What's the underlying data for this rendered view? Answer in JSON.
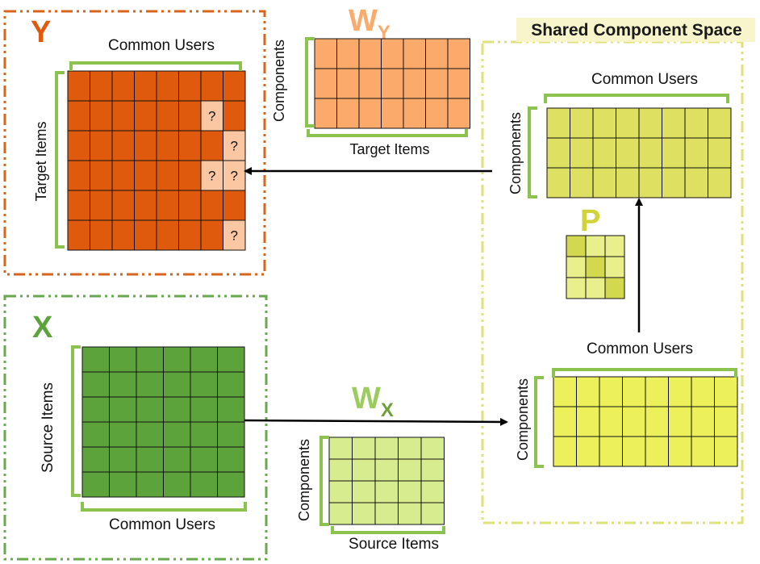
{
  "panels": {
    "y": {
      "title": "Y",
      "columns_label": "Common Users",
      "rows_label": "Target Items",
      "unknown_mark": "?"
    },
    "x": {
      "title": "X",
      "rows_label": "Source Items",
      "columns_label": "Common Users"
    },
    "shared": {
      "title": "Shared Component Space"
    }
  },
  "wy": {
    "title": "W",
    "subscript": "Y",
    "rows_label": "Components",
    "columns_label": "Target Items"
  },
  "wx": {
    "title": "W",
    "subscript": "X",
    "rows_label": "Components",
    "columns_label": "Source Items"
  },
  "shared_upper": {
    "columns_label": "Common Users",
    "rows_label": "Components"
  },
  "shared_lower": {
    "columns_label": "Common Users",
    "rows_label": "Components"
  },
  "p": {
    "title": "P"
  },
  "colors": {
    "y": "#e05a0e",
    "y_unknown": "#fbc7a3",
    "wy": "#fbaa6c",
    "x": "#5da33c",
    "wx": "#d7ec8e",
    "shared_upper": "#dde060",
    "shared_lower": "#ecf05a",
    "p_light": "#e9ef8a",
    "p_dark": "#d3d94f",
    "bracket": "#8cc34f",
    "y_border": "#d9651c",
    "x_border": "#6aa84f",
    "shared_border": "#dde27a"
  }
}
